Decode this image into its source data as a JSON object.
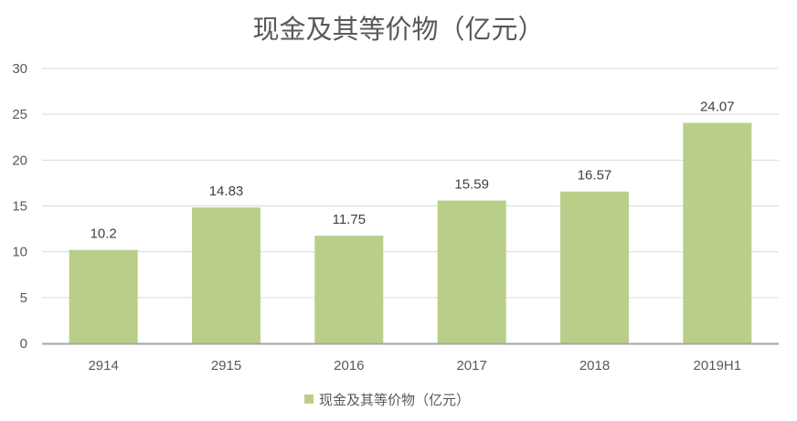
{
  "chart_data": {
    "type": "bar",
    "title": "现金及其等价物（亿元）",
    "categories": [
      "2914",
      "2915",
      "2016",
      "2017",
      "2018",
      "2019H1"
    ],
    "series": [
      {
        "name": "现金及其等价物（亿元）",
        "values": [
          10.2,
          14.83,
          11.75,
          15.59,
          16.57,
          24.07
        ],
        "color": "#b9cf89"
      }
    ],
    "ylim": [
      0,
      30
    ],
    "yticks": [
      0,
      5,
      10,
      15,
      20,
      25,
      30
    ],
    "grid": true,
    "legend_position": "bottom",
    "xlabel": "",
    "ylabel": ""
  }
}
